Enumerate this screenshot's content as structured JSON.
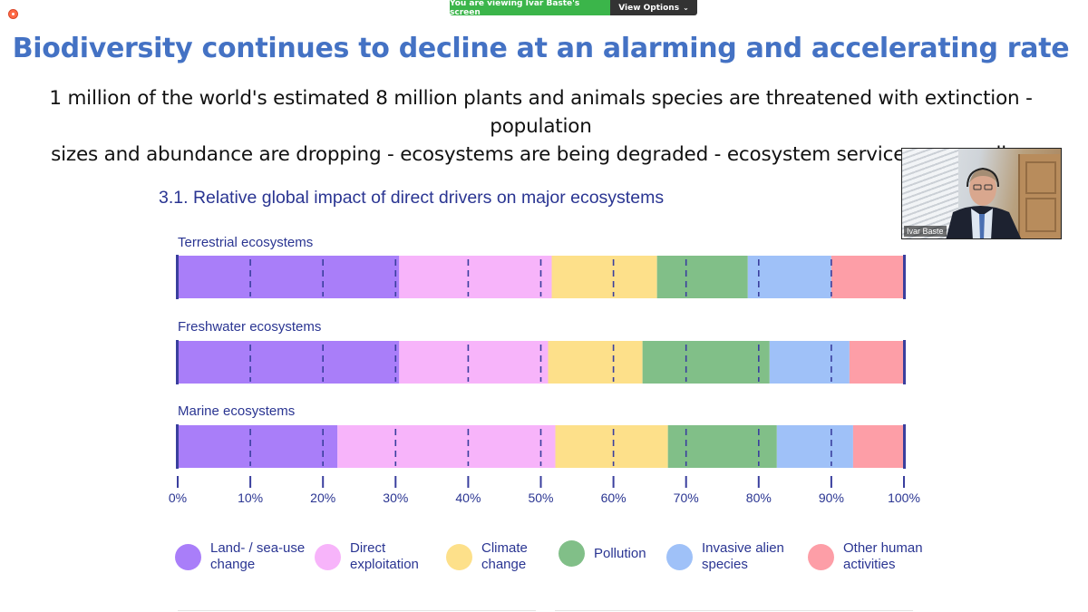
{
  "share_banner": {
    "status": "You are viewing Ivar Baste's screen",
    "options_label": "View Options",
    "options_icon": "chevron-down-icon"
  },
  "slide": {
    "title": "Biodiversity continues to decline at an alarming and accelerating rate",
    "subtitle_line1": "1 million of the world's estimated 8 million plants and animals species are threatened with extinction - population",
    "subtitle_line2": "sizes and abundance are dropping - ecosystems are being degraded - ecosystem services are eroding"
  },
  "chart_data": {
    "type": "bar",
    "orientation": "horizontal-stacked-100",
    "title": "3.1.  Relative global impact of direct drivers on major ecosystems",
    "categories": [
      "Terrestrial ecosystems",
      "Freshwater ecosystems",
      "Marine ecosystems"
    ],
    "xlim": [
      0,
      100
    ],
    "x_ticks": [
      "0%",
      "10%",
      "20%",
      "30%",
      "40%",
      "50%",
      "60%",
      "70%",
      "80%",
      "90%",
      "100%"
    ],
    "gridlines": "dashed-vertical",
    "legend_position": "bottom",
    "series": [
      {
        "name": "Land- / sea-use\nchange",
        "color": "#a97ef9",
        "values": [
          30.5,
          30.5,
          22
        ]
      },
      {
        "name": "Direct\nexploitation",
        "color": "#f7b4fa",
        "values": [
          21,
          20.5,
          30
        ]
      },
      {
        "name": "Climate\nchange",
        "color": "#fde08a",
        "values": [
          14.5,
          13,
          15.5
        ]
      },
      {
        "name": "Pollution",
        "color": "#81bf88",
        "values": [
          12.5,
          17.5,
          15
        ]
      },
      {
        "name": "Invasive alien\nspecies",
        "color": "#9fc1f8",
        "values": [
          11.5,
          11,
          10.5
        ]
      },
      {
        "name": "Other human\nactivities",
        "color": "#fd9ea7",
        "values": [
          10,
          7.5,
          7
        ]
      }
    ]
  },
  "video": {
    "participant_name": "Ivar Baste"
  },
  "colors": {
    "title": "#4472c4",
    "chart_text": "#2a3592",
    "axis": "#3a3f9e",
    "banner_green": "#3bb54a",
    "banner_dark": "#333333"
  }
}
